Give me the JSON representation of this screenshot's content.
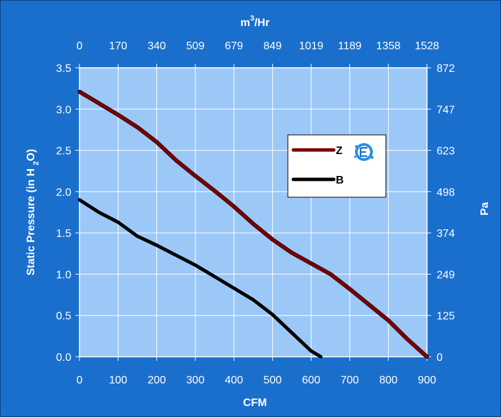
{
  "chart_data": {
    "type": "line",
    "title": "",
    "xlabel": "CFM",
    "ylabel": "Static Pressure (in H 2O)",
    "ylabel_main": "Static Pressure (in H ",
    "ylabel_sub": "2",
    "ylabel_end": "O)",
    "x2label_main": "m",
    "x2label_sup": "3",
    "x2label_end": "/Hr",
    "y2label": "Pa",
    "xlim": [
      0,
      900
    ],
    "ylim": [
      0,
      3.5
    ],
    "x_ticks": [
      "0",
      "100",
      "200",
      "300",
      "400",
      "500",
      "600",
      "700",
      "800",
      "900"
    ],
    "y_ticks": [
      "0.0",
      "0.5",
      "1.0",
      "1.5",
      "2.0",
      "2.5",
      "3.0",
      "3.5"
    ],
    "x2_ticks": [
      "0",
      "170",
      "340",
      "509",
      "679",
      "849",
      "1019",
      "1189",
      "1358",
      "1528"
    ],
    "y2_ticks": [
      "0",
      "125",
      "249",
      "374",
      "498",
      "623",
      "747",
      "872"
    ],
    "grid": true,
    "legend_position": "top-right",
    "colors": {
      "outer_bg": "#1a6fcc",
      "plot_bg": "#9cc8f8",
      "grid": "#ffffff",
      "series_z": "#7a0000",
      "series_b": "#000000"
    },
    "logo_icon": "globe-e-logo-icon",
    "series": [
      {
        "name": "Z",
        "x": [
          0,
          50,
          100,
          150,
          200,
          250,
          300,
          350,
          400,
          450,
          500,
          550,
          600,
          650,
          700,
          750,
          800,
          850,
          900
        ],
        "y": [
          3.21,
          3.07,
          2.93,
          2.78,
          2.6,
          2.38,
          2.19,
          2.01,
          1.82,
          1.61,
          1.42,
          1.26,
          1.13,
          1.0,
          0.82,
          0.63,
          0.44,
          0.21,
          0.0
        ]
      },
      {
        "name": "B",
        "x": [
          0,
          50,
          100,
          150,
          200,
          250,
          300,
          350,
          400,
          450,
          500,
          550,
          600,
          625
        ],
        "y": [
          1.9,
          1.75,
          1.63,
          1.46,
          1.35,
          1.23,
          1.11,
          0.97,
          0.83,
          0.69,
          0.51,
          0.29,
          0.07,
          0.0
        ]
      }
    ]
  }
}
